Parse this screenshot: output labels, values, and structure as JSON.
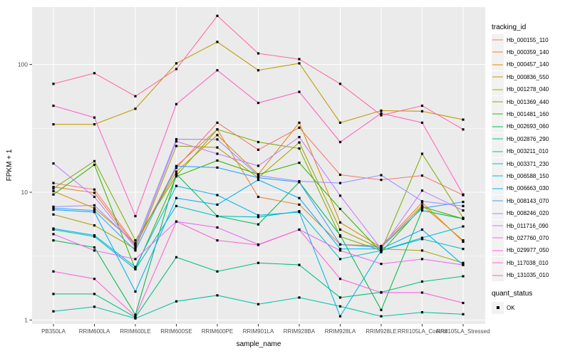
{
  "chart_data": {
    "type": "line",
    "title": "",
    "xlabel": "sample_name",
    "ylabel": "FPKM + 1",
    "y_scale": "log10",
    "ylim": [
      1,
      260
    ],
    "y_ticks": [
      1,
      10,
      100
    ],
    "y_minor_ticks": [
      3.162,
      31.62
    ],
    "grid": "on",
    "panel_bg": "#EBEBEB",
    "grid_color": "#FFFFFF",
    "tick_label_color": "#4D4D4D",
    "point_symbol": "black-square",
    "point_color": "#000000",
    "legend_position": "right",
    "categories": [
      "PB350LA",
      "RRIM600LA",
      "RRIM600LE",
      "RRIM600SE",
      "RRIM600PE",
      "RRIM901LA",
      "RRIM928BA",
      "RRIM928LA",
      "RRIM928LE",
      "RRII105LA_Control",
      "RRII105LA_Stressed"
    ],
    "series": [
      {
        "name": "Hb_000155_110",
        "color": "#F8766D",
        "values": [
          11.8,
          10.5,
          3.9,
          15.5,
          35,
          21.5,
          32,
          13.7,
          12.5,
          13.5,
          9.5
        ]
      },
      {
        "name": "Hb_000359_140",
        "color": "#EA8331",
        "values": [
          11.0,
          9.9,
          3.8,
          16,
          31,
          9.2,
          8.0,
          3.9,
          3.8,
          8.3,
          4.1
        ]
      },
      {
        "name": "Hb_000457_140",
        "color": "#D89000",
        "values": [
          10.2,
          7.5,
          4.0,
          14.5,
          28,
          13.8,
          35,
          5.8,
          3.7,
          7.9,
          4.2
        ]
      },
      {
        "name": "Hb_000836_550",
        "color": "#C09B00",
        "values": [
          34,
          34,
          45,
          102,
          150,
          90,
          102,
          35,
          43.5,
          43,
          37
        ]
      },
      {
        "name": "Hb_001278_040",
        "color": "#A3A500",
        "values": [
          6.7,
          5.5,
          3.6,
          23,
          22.4,
          13,
          24.5,
          5.1,
          3.6,
          3.5,
          2.8
        ]
      },
      {
        "name": "Hb_001369_440",
        "color": "#7CAE00",
        "values": [
          10.7,
          17.5,
          4.2,
          13.5,
          31,
          24.7,
          22,
          4.5,
          3.5,
          20,
          6.3
        ]
      },
      {
        "name": "Hb_001481_160",
        "color": "#39B600",
        "values": [
          9.6,
          16.4,
          2.5,
          13.3,
          17.7,
          13.8,
          17,
          7.4,
          3.4,
          7.7,
          6.2
        ]
      },
      {
        "name": "Hb_002693_060",
        "color": "#00BB4E",
        "values": [
          4.2,
          3.7,
          1.1,
          13.9,
          6.5,
          5.6,
          12,
          4.6,
          1.2,
          7.2,
          6.2
        ]
      },
      {
        "name": "Hb_002876_290",
        "color": "#00BF7D",
        "values": [
          1.6,
          1.6,
          1.05,
          3.1,
          2.4,
          2.8,
          2.7,
          1.5,
          1.65,
          2.0,
          2.2
        ]
      },
      {
        "name": "Hb_003211_010",
        "color": "#00C1A7",
        "values": [
          1.17,
          1.27,
          1.03,
          1.4,
          1.56,
          1.33,
          1.5,
          1.28,
          1.07,
          1.15,
          1.11
        ]
      },
      {
        "name": "Hb_003371_230",
        "color": "#00BFC4",
        "values": [
          5.1,
          4.5,
          2.5,
          7.8,
          6.5,
          6.4,
          7.1,
          3.0,
          3.5,
          4.3,
          3.6
        ]
      },
      {
        "name": "Hb_006588_150",
        "color": "#00BAE0",
        "values": [
          5.2,
          4.6,
          2.6,
          11.2,
          9.5,
          6.6,
          7.0,
          1.07,
          3.5,
          4.4,
          5.4
        ]
      },
      {
        "name": "Hb_006663_030",
        "color": "#00B0F6",
        "values": [
          7.3,
          7.0,
          1.67,
          9.0,
          8.0,
          12.5,
          9.0,
          3.6,
          3.6,
          5.1,
          2.7
        ]
      },
      {
        "name": "Hb_008143_070",
        "color": "#35A2FF",
        "values": [
          7.5,
          7.2,
          3.5,
          16,
          15.6,
          13,
          12,
          3.9,
          3.7,
          7.5,
          8.4
        ]
      },
      {
        "name": "Hb_008246_020",
        "color": "#9590FF",
        "values": [
          7.7,
          7.9,
          3.9,
          26,
          25.9,
          13.5,
          12.2,
          11.8,
          13.6,
          8.5,
          7.8
        ]
      },
      {
        "name": "Hb_011716_090",
        "color": "#C77CFF",
        "values": [
          16.8,
          9.2,
          3.7,
          25,
          20,
          16.1,
          27,
          9.4,
          3.6,
          10.3,
          7.2
        ]
      },
      {
        "name": "Hb_027760_070",
        "color": "#E76BF3",
        "values": [
          4.7,
          3.5,
          3.0,
          5.9,
          5.3,
          3.9,
          5.1,
          3.5,
          2.75,
          3.0,
          2.7
        ]
      },
      {
        "name": "Hb_029977_050",
        "color": "#FA62DB",
        "values": [
          2.4,
          2.1,
          1.07,
          5.9,
          4.2,
          3.87,
          5.1,
          2.1,
          1.64,
          1.64,
          1.36
        ]
      },
      {
        "name": "Hb_117038_010",
        "color": "#FF61C3",
        "values": [
          47.5,
          38.4,
          6.5,
          48.9,
          90,
          50,
          61,
          24.7,
          41.5,
          35,
          9.6
        ]
      },
      {
        "name": "Hb_131035_010",
        "color": "#FF67A4",
        "values": [
          70.5,
          85.4,
          56.4,
          92,
          240,
          122,
          110,
          70.5,
          40,
          47.5,
          31
        ]
      }
    ],
    "legend": {
      "tracking_title": "tracking_id",
      "quant_title": "quant_status",
      "quant_items": [
        {
          "label": "OK",
          "symbol": "black-square"
        }
      ]
    }
  }
}
